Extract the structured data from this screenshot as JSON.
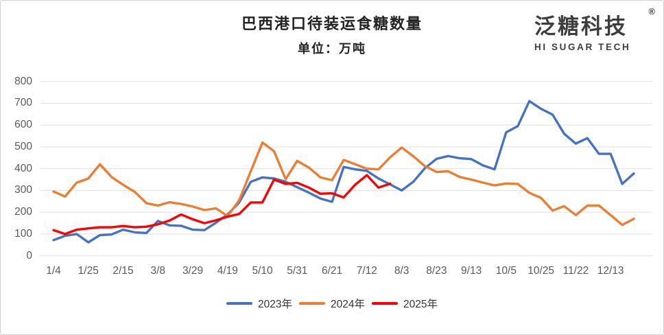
{
  "window": {
    "name": "巴西港口待装运食糖数量图表"
  },
  "header": {
    "title": "巴西港口待装运食糖数量",
    "subtitle": "单位：万吨"
  },
  "logo": {
    "cn": "泛糖科技",
    "en": "HI SUGAR TECH",
    "reg": "®"
  },
  "chart_data": {
    "type": "line",
    "title": "巴西港口待装运食糖数量",
    "subtitle": "单位：万吨",
    "ylabel": "万吨",
    "ylim": [
      0,
      800
    ],
    "y_ticks": [
      0,
      100,
      200,
      300,
      400,
      500,
      600,
      700,
      800
    ],
    "grid": "horizontal",
    "legend_position": "bottom",
    "n_points": 51,
    "x_labels": [
      "1/4",
      "1/25",
      "2/15",
      "3/8",
      "3/29",
      "4/19",
      "5/10",
      "5/31",
      "6/21",
      "7/12",
      "8/3",
      "8/23",
      "9/13",
      "10/5",
      "10/25",
      "11/22",
      "12/13"
    ],
    "x_label_indices": [
      0,
      3,
      6,
      9,
      12,
      15,
      18,
      21,
      24,
      27,
      30,
      33,
      36,
      39,
      42,
      45,
      48
    ],
    "series": [
      {
        "name": "2023年",
        "color": "#4472C4",
        "values": [
          72,
          92,
          100,
          62,
          95,
          98,
          120,
          108,
          105,
          160,
          140,
          138,
          120,
          118,
          152,
          190,
          245,
          340,
          360,
          355,
          340,
          315,
          290,
          263,
          248,
          408,
          397,
          390,
          355,
          328,
          300,
          340,
          402,
          445,
          458,
          448,
          444,
          415,
          397,
          567,
          595,
          710,
          675,
          648,
          560,
          515,
          540,
          468,
          468,
          330,
          378
        ]
      },
      {
        "name": "2024年",
        "color": "#ED7D31",
        "values": [
          295,
          272,
          336,
          355,
          420,
          362,
          326,
          294,
          242,
          231,
          246,
          238,
          226,
          210,
          218,
          182,
          255,
          388,
          520,
          480,
          352,
          436,
          405,
          360,
          347,
          440,
          420,
          400,
          397,
          452,
          497,
          457,
          412,
          385,
          388,
          362,
          350,
          336,
          323,
          332,
          330,
          289,
          266,
          208,
          228,
          187,
          231,
          231,
          187,
          142,
          170
        ]
      },
      {
        "name": "2025年",
        "color": "#FE0000",
        "values": [
          118,
          100,
          120,
          126,
          131,
          131,
          137,
          131,
          134,
          145,
          162,
          190,
          168,
          150,
          163,
          180,
          192,
          245,
          245,
          350,
          330,
          335,
          313,
          285,
          287,
          268,
          327,
          370,
          313,
          331
        ]
      }
    ]
  }
}
